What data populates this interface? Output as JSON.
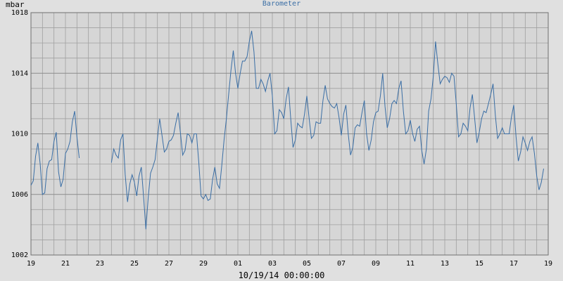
{
  "chart_data": {
    "type": "line",
    "title": "Barometer",
    "ylabel": "mbar",
    "xlabel": "10/19/14 00:00:00",
    "ylim": [
      1002,
      1018
    ],
    "yticks": [
      "1002",
      "1006",
      "1010",
      "1014",
      "1018"
    ],
    "xticks": [
      "19",
      "21",
      "23",
      "25",
      "27",
      "29",
      "01",
      "03",
      "05",
      "07",
      "09",
      "11",
      "13",
      "15",
      "17",
      "19"
    ],
    "grid": true,
    "colors": {
      "line": "#3a6ea5",
      "plot_bg": "#d6d6d6",
      "grid": "#a0a0a0",
      "title": "#3a6ea5"
    },
    "segments": [
      [
        [
          0.0,
          1006.6
        ],
        [
          0.2,
          1006.9
        ],
        [
          0.4,
          1008.5
        ],
        [
          0.6,
          1009.4
        ],
        [
          0.8,
          1008.0
        ],
        [
          1.0,
          1006.0
        ],
        [
          1.2,
          1006.1
        ],
        [
          1.4,
          1007.7
        ],
        [
          1.6,
          1008.2
        ],
        [
          1.8,
          1008.3
        ],
        [
          2.0,
          1009.5
        ],
        [
          2.2,
          1010.1
        ],
        [
          2.4,
          1007.5
        ],
        [
          2.6,
          1006.5
        ],
        [
          2.8,
          1007.0
        ],
        [
          3.0,
          1008.7
        ],
        [
          3.2,
          1009.0
        ],
        [
          3.4,
          1009.5
        ],
        [
          3.6,
          1010.8
        ],
        [
          3.8,
          1011.5
        ],
        [
          4.0,
          1009.8
        ],
        [
          4.2,
          1008.4
        ]
      ],
      [
        [
          7.0,
          1008.1
        ],
        [
          7.2,
          1009.0
        ],
        [
          7.4,
          1008.6
        ],
        [
          7.6,
          1008.4
        ],
        [
          7.8,
          1009.6
        ],
        [
          8.0,
          1010.0
        ],
        [
          8.2,
          1007.3
        ],
        [
          8.4,
          1005.5
        ],
        [
          8.6,
          1006.7
        ],
        [
          8.8,
          1007.3
        ],
        [
          9.0,
          1006.8
        ],
        [
          9.2,
          1005.9
        ],
        [
          9.4,
          1007.2
        ],
        [
          9.6,
          1007.8
        ],
        [
          9.8,
          1005.8
        ],
        [
          10.0,
          1003.7
        ],
        [
          10.2,
          1005.8
        ],
        [
          10.4,
          1007.4
        ],
        [
          10.6,
          1007.8
        ],
        [
          10.8,
          1008.3
        ],
        [
          11.0,
          1009.7
        ],
        [
          11.2,
          1011.0
        ],
        [
          11.4,
          1009.9
        ],
        [
          11.6,
          1008.8
        ],
        [
          11.8,
          1009.0
        ],
        [
          12.0,
          1009.5
        ],
        [
          12.2,
          1009.6
        ],
        [
          12.4,
          1009.9
        ],
        [
          12.6,
          1010.7
        ],
        [
          12.8,
          1011.4
        ],
        [
          13.0,
          1010.1
        ],
        [
          13.2,
          1008.6
        ],
        [
          13.4,
          1008.9
        ],
        [
          13.6,
          1010.0
        ],
        [
          13.8,
          1009.9
        ],
        [
          14.0,
          1009.4
        ],
        [
          14.2,
          1010.0
        ],
        [
          14.4,
          1010.0
        ],
        [
          14.6,
          1008.1
        ],
        [
          14.8,
          1005.9
        ],
        [
          15.0,
          1005.7
        ],
        [
          15.2,
          1006.0
        ],
        [
          15.4,
          1005.6
        ],
        [
          15.6,
          1005.7
        ],
        [
          15.8,
          1007.0
        ],
        [
          16.0,
          1007.8
        ],
        [
          16.2,
          1006.7
        ],
        [
          16.4,
          1006.4
        ],
        [
          16.6,
          1007.9
        ],
        [
          16.8,
          1009.6
        ],
        [
          17.0,
          1011.0
        ],
        [
          17.2,
          1012.6
        ],
        [
          17.4,
          1014.2
        ],
        [
          17.6,
          1015.5
        ],
        [
          17.8,
          1014.0
        ],
        [
          18.0,
          1013.0
        ],
        [
          18.2,
          1014.0
        ],
        [
          18.4,
          1014.8
        ],
        [
          18.6,
          1014.8
        ],
        [
          18.8,
          1015.1
        ],
        [
          19.0,
          1016.1
        ],
        [
          19.2,
          1016.8
        ],
        [
          19.4,
          1015.4
        ],
        [
          19.6,
          1013.0
        ],
        [
          19.8,
          1013.0
        ],
        [
          20.0,
          1013.6
        ],
        [
          20.2,
          1013.3
        ],
        [
          20.4,
          1012.8
        ],
        [
          20.6,
          1013.5
        ],
        [
          20.8,
          1014.0
        ],
        [
          21.0,
          1012.5
        ],
        [
          21.2,
          1010.0
        ],
        [
          21.4,
          1010.2
        ],
        [
          21.6,
          1011.6
        ],
        [
          21.8,
          1011.4
        ],
        [
          22.0,
          1011.0
        ],
        [
          22.2,
          1012.3
        ],
        [
          22.4,
          1013.1
        ],
        [
          22.6,
          1011.0
        ],
        [
          22.8,
          1009.1
        ],
        [
          23.0,
          1009.6
        ],
        [
          23.2,
          1010.7
        ],
        [
          23.4,
          1010.5
        ],
        [
          23.6,
          1010.4
        ],
        [
          23.8,
          1011.3
        ],
        [
          24.0,
          1012.5
        ],
        [
          24.2,
          1011.0
        ],
        [
          24.4,
          1009.7
        ],
        [
          24.6,
          1009.9
        ],
        [
          24.8,
          1010.8
        ],
        [
          25.0,
          1010.7
        ],
        [
          25.2,
          1010.7
        ],
        [
          25.4,
          1012.2
        ],
        [
          25.6,
          1013.2
        ],
        [
          25.8,
          1012.3
        ],
        [
          26.0,
          1012.0
        ],
        [
          26.2,
          1011.8
        ],
        [
          26.4,
          1011.7
        ],
        [
          26.6,
          1012.0
        ],
        [
          26.8,
          1011.1
        ],
        [
          27.0,
          1009.9
        ],
        [
          27.2,
          1011.3
        ],
        [
          27.4,
          1011.9
        ],
        [
          27.6,
          1010.0
        ],
        [
          27.8,
          1008.6
        ],
        [
          28.0,
          1009.1
        ],
        [
          28.2,
          1010.4
        ],
        [
          28.4,
          1010.6
        ],
        [
          28.6,
          1010.5
        ],
        [
          28.8,
          1011.4
        ],
        [
          29.0,
          1012.2
        ],
        [
          29.2,
          1010.0
        ],
        [
          29.4,
          1008.9
        ],
        [
          29.6,
          1009.6
        ],
        [
          29.8,
          1010.8
        ],
        [
          30.0,
          1011.4
        ],
        [
          30.2,
          1011.5
        ],
        [
          30.4,
          1012.5
        ],
        [
          30.6,
          1014.0
        ],
        [
          30.8,
          1011.8
        ],
        [
          31.0,
          1010.4
        ],
        [
          31.2,
          1011.0
        ],
        [
          31.4,
          1012.0
        ],
        [
          31.6,
          1012.2
        ],
        [
          31.8,
          1012.0
        ],
        [
          32.0,
          1013.0
        ],
        [
          32.2,
          1013.5
        ],
        [
          32.4,
          1011.5
        ],
        [
          32.6,
          1010.0
        ],
        [
          32.8,
          1010.2
        ],
        [
          33.0,
          1010.9
        ],
        [
          33.2,
          1010.0
        ],
        [
          33.4,
          1009.5
        ],
        [
          33.6,
          1010.3
        ],
        [
          33.8,
          1010.5
        ],
        [
          34.0,
          1008.9
        ],
        [
          34.2,
          1008.0
        ],
        [
          34.4,
          1009.0
        ],
        [
          34.6,
          1011.5
        ],
        [
          34.8,
          1012.3
        ],
        [
          35.0,
          1013.8
        ],
        [
          35.2,
          1016.1
        ],
        [
          35.4,
          1014.6
        ],
        [
          35.6,
          1013.3
        ],
        [
          35.8,
          1013.6
        ],
        [
          36.0,
          1013.8
        ],
        [
          36.2,
          1013.7
        ],
        [
          36.4,
          1013.4
        ],
        [
          36.6,
          1014.0
        ],
        [
          36.8,
          1013.8
        ],
        [
          37.0,
          1012.0
        ],
        [
          37.2,
          1009.8
        ],
        [
          37.4,
          1010.0
        ],
        [
          37.6,
          1010.7
        ],
        [
          37.8,
          1010.5
        ],
        [
          38.0,
          1010.2
        ],
        [
          38.2,
          1011.7
        ],
        [
          38.4,
          1012.6
        ],
        [
          38.6,
          1011.0
        ],
        [
          38.8,
          1009.4
        ],
        [
          39.0,
          1010.1
        ],
        [
          39.2,
          1011.0
        ],
        [
          39.4,
          1011.5
        ],
        [
          39.6,
          1011.4
        ],
        [
          39.8,
          1012.0
        ],
        [
          40.0,
          1012.6
        ],
        [
          40.2,
          1013.3
        ],
        [
          40.4,
          1011.2
        ],
        [
          40.6,
          1009.7
        ],
        [
          40.8,
          1010.0
        ],
        [
          41.0,
          1010.4
        ],
        [
          41.2,
          1010.0
        ],
        [
          41.4,
          1010.0
        ],
        [
          41.6,
          1010.0
        ],
        [
          41.8,
          1011.1
        ],
        [
          42.0,
          1011.9
        ],
        [
          42.2,
          1009.8
        ],
        [
          42.4,
          1008.2
        ],
        [
          42.6,
          1008.8
        ],
        [
          42.8,
          1009.8
        ],
        [
          43.0,
          1009.4
        ],
        [
          43.2,
          1008.9
        ],
        [
          43.4,
          1009.5
        ],
        [
          43.6,
          1009.8
        ],
        [
          43.8,
          1008.7
        ],
        [
          44.0,
          1007.2
        ],
        [
          44.2,
          1006.3
        ],
        [
          44.4,
          1006.8
        ],
        [
          44.6,
          1007.7
        ]
      ]
    ]
  }
}
